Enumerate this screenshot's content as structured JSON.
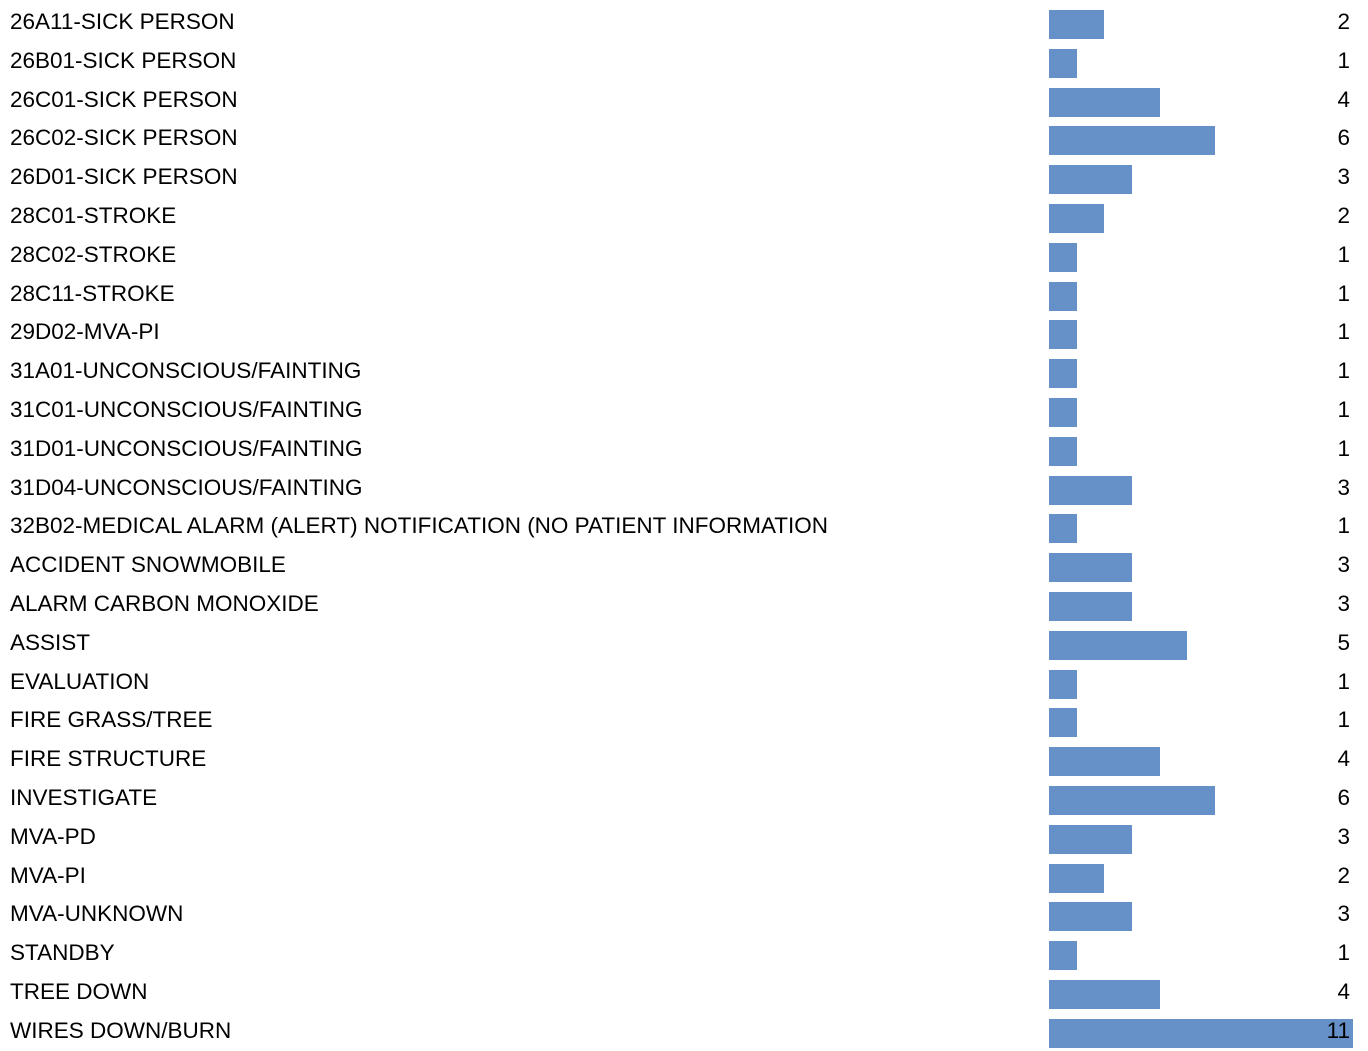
{
  "chart_data": {
    "type": "bar",
    "orientation": "horizontal",
    "bar_color": "#6690c8",
    "categories": [
      "26A11-SICK PERSON",
      "26B01-SICK PERSON",
      "26C01-SICK PERSON",
      "26C02-SICK PERSON",
      "26D01-SICK PERSON",
      "28C01-STROKE",
      "28C02-STROKE",
      "28C11-STROKE",
      "29D02-MVA-PI",
      "31A01-UNCONSCIOUS/FAINTING",
      "31C01-UNCONSCIOUS/FAINTING",
      "31D01-UNCONSCIOUS/FAINTING",
      "31D04-UNCONSCIOUS/FAINTING",
      "32B02-MEDICAL ALARM (ALERT) NOTIFICATION (NO PATIENT INFORMATION",
      "ACCIDENT SNOWMOBILE",
      "ALARM CARBON MONOXIDE",
      "ASSIST",
      "EVALUATION",
      "FIRE GRASS/TREE",
      "FIRE STRUCTURE",
      "INVESTIGATE",
      "MVA-PD",
      "MVA-PI",
      "MVA-UNKNOWN",
      "STANDBY",
      "TREE DOWN",
      "WIRES DOWN/BURN"
    ],
    "values": [
      2,
      1,
      4,
      6,
      3,
      2,
      1,
      1,
      1,
      1,
      1,
      1,
      3,
      1,
      3,
      3,
      5,
      1,
      1,
      4,
      6,
      3,
      2,
      3,
      1,
      4,
      11
    ],
    "xlim": [
      0,
      11
    ]
  }
}
